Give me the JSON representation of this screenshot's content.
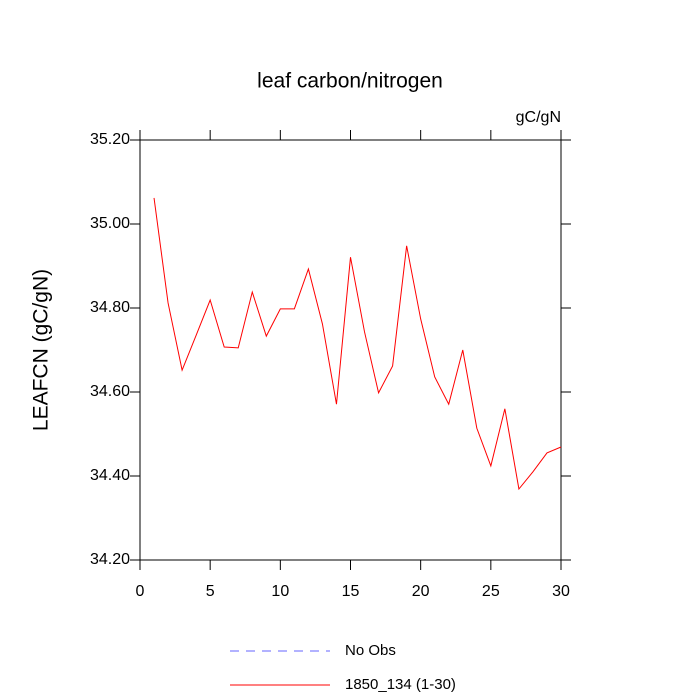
{
  "chart_data": {
    "type": "line",
    "title": "leaf carbon/nitrogen",
    "units": "gC/gN",
    "y_label": "LEAFCN  (gC/gN)",
    "x": [
      1,
      2,
      3,
      4,
      5,
      6,
      7,
      8,
      9,
      10,
      11,
      12,
      13,
      14,
      15,
      16,
      17,
      18,
      19,
      20,
      21,
      22,
      23,
      24,
      25,
      26,
      27,
      28,
      29,
      30
    ],
    "series": [
      {
        "name": "1850_134 (1-30)",
        "color": "#ff0000",
        "values": [
          35.062,
          34.812,
          34.652,
          34.735,
          34.819,
          34.707,
          34.705,
          34.838,
          34.733,
          34.798,
          34.798,
          34.893,
          34.762,
          34.571,
          34.921,
          34.743,
          34.598,
          34.662,
          34.948,
          34.774,
          34.636,
          34.571,
          34.7,
          34.514,
          34.424,
          34.56,
          34.369,
          34.41,
          34.455,
          34.469
        ]
      }
    ],
    "no_obs": {
      "name": "No Obs",
      "color": "#6666ff"
    },
    "xlim": [
      0,
      30
    ],
    "xticks": [
      0,
      5,
      10,
      15,
      20,
      25,
      30
    ],
    "ylim": [
      34.2,
      35.2
    ],
    "yticks": [
      {
        "value": 34.2,
        "label": "34.20"
      },
      {
        "value": 34.4,
        "label": "34.40"
      },
      {
        "value": 34.6,
        "label": "34.60"
      },
      {
        "value": 34.8,
        "label": "34.80"
      },
      {
        "value": 35.0,
        "label": "35.00"
      },
      {
        "value": 35.2,
        "label": "35.20"
      }
    ]
  }
}
